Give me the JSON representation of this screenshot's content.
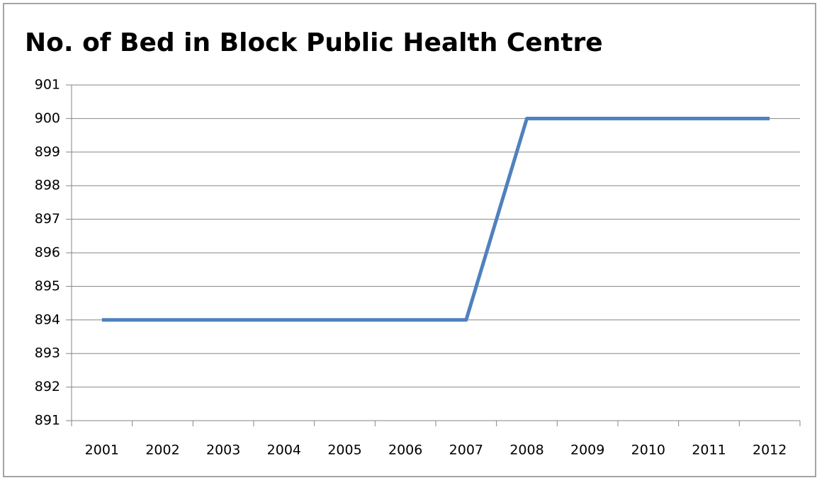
{
  "chart_data": {
    "type": "line",
    "title": "No. of Bed in Block Public Health Centre",
    "categories": [
      "2001",
      "2002",
      "2003",
      "2004",
      "2005",
      "2006",
      "2007",
      "2008",
      "2009",
      "2010",
      "2011",
      "2012"
    ],
    "series": [
      {
        "name": "No. of Bed",
        "color": "#4f81bd",
        "values": [
          894,
          894,
          894,
          894,
          894,
          894,
          894,
          900,
          900,
          900,
          900,
          900
        ]
      }
    ],
    "ylim": [
      891,
      901
    ],
    "yticks": [
      891,
      892,
      893,
      894,
      895,
      896,
      897,
      898,
      899,
      900,
      901
    ],
    "grid": true
  }
}
